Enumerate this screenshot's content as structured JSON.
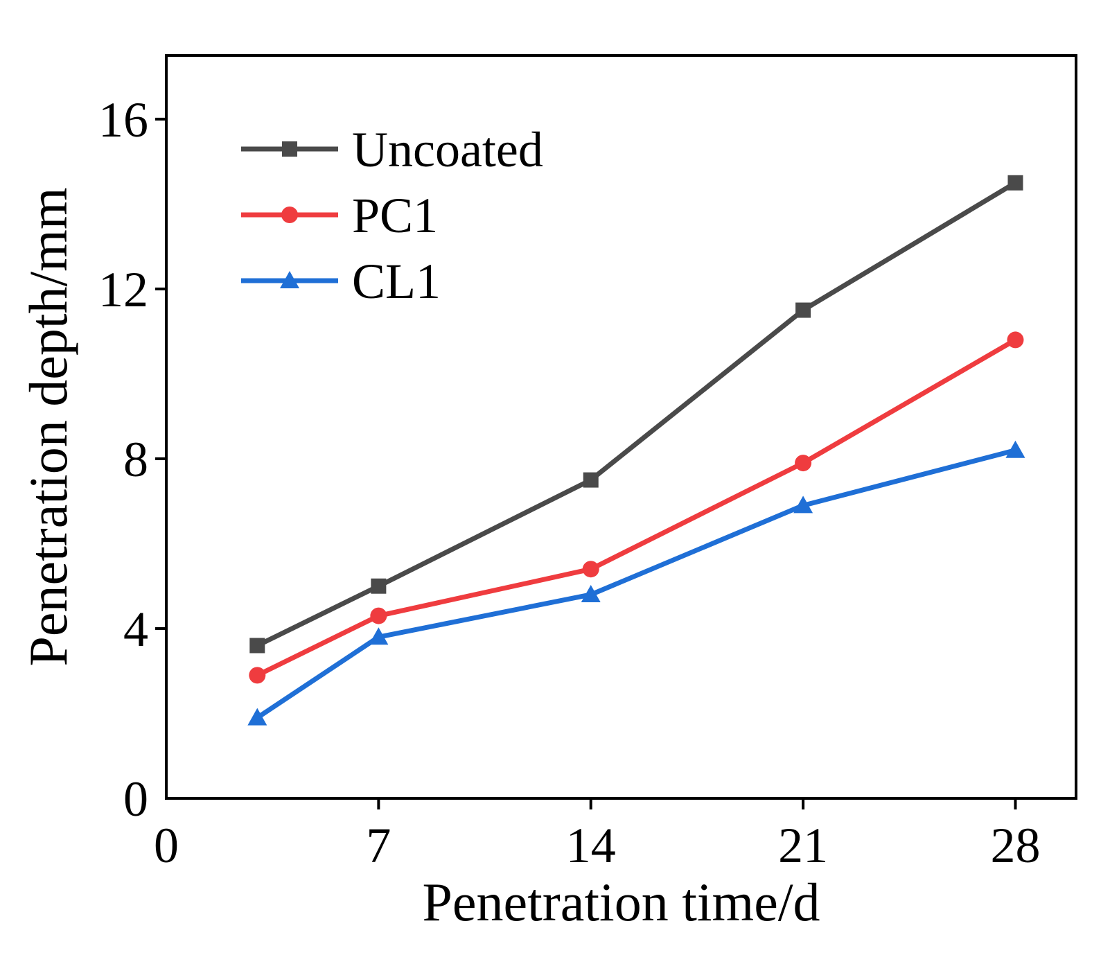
{
  "chart_data": {
    "type": "line",
    "title": "",
    "xlabel": "Penetration time/d",
    "ylabel": "Penetration depth/mm",
    "xlim": [
      0,
      30
    ],
    "ylim": [
      0,
      17.5
    ],
    "xticks": [
      0,
      7,
      14,
      21,
      28
    ],
    "yticks": [
      0,
      4,
      8,
      12,
      16
    ],
    "xtick_labels": [
      "0",
      "7",
      "14",
      "21",
      "28"
    ],
    "ytick_labels": [
      "0",
      "4",
      "8",
      "12",
      "16"
    ],
    "grid": false,
    "legend_position": "top-left",
    "x": [
      3,
      7,
      14,
      21,
      28
    ],
    "series": [
      {
        "name": "Uncoated",
        "color": "#4a4a4a",
        "marker": "square",
        "values": [
          3.6,
          5.0,
          7.5,
          11.5,
          14.5
        ]
      },
      {
        "name": "PC1",
        "color": "#ef3c3f",
        "marker": "circle",
        "values": [
          2.9,
          4.3,
          5.4,
          7.9,
          10.8
        ]
      },
      {
        "name": "CL1",
        "color": "#1f6fd6",
        "marker": "triangle",
        "values": [
          1.9,
          3.8,
          4.8,
          6.9,
          8.2
        ]
      }
    ]
  }
}
